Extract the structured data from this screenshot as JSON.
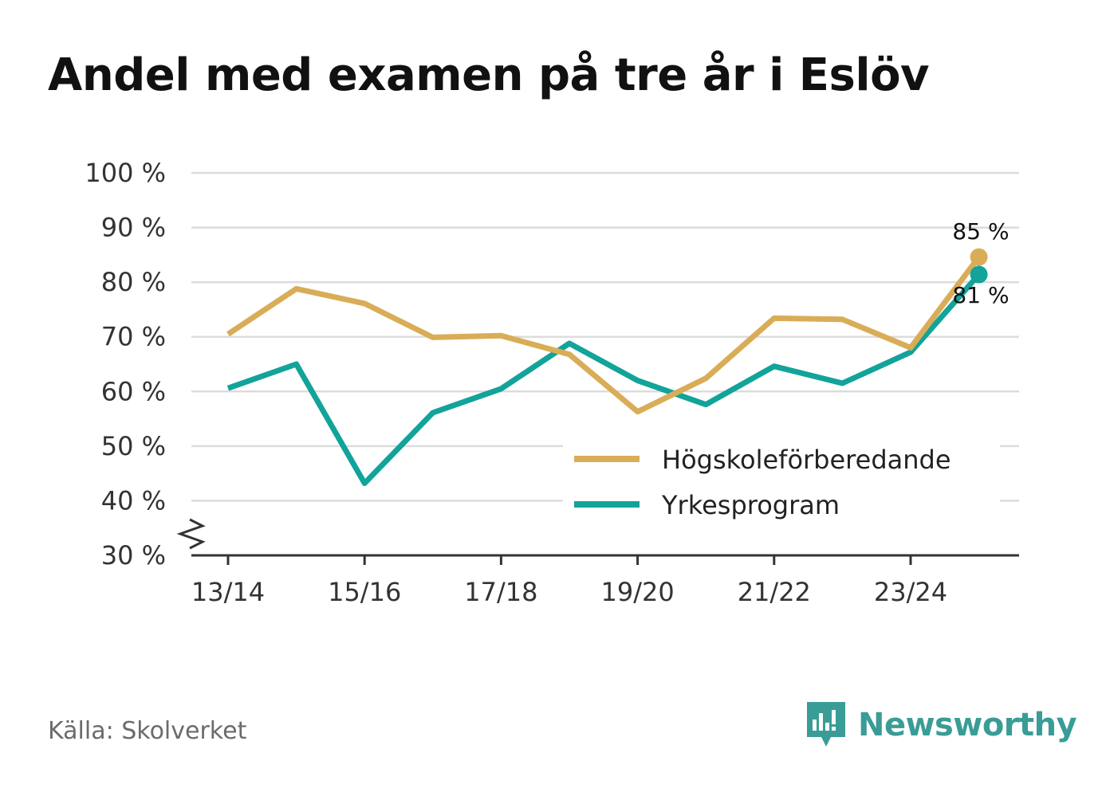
{
  "title": "Andel med examen på tre år i Eslöv",
  "source": "Källa: Skolverket",
  "brand": {
    "name": "Newsworthy",
    "color": "#3a9c96",
    "icon": "newsworthy-logo-icon"
  },
  "chart_data": {
    "type": "line",
    "title": "Andel med examen på tre år i Eslöv",
    "xlabel": "",
    "ylabel": "",
    "x": [
      "13/14",
      "14/15",
      "15/16",
      "16/17",
      "17/18",
      "18/19",
      "19/20",
      "20/21",
      "21/22",
      "22/23",
      "23/24",
      "24/25"
    ],
    "x_tick_labels": [
      "13/14",
      "15/16",
      "17/18",
      "19/20",
      "21/22",
      "23/24"
    ],
    "ylim": [
      30,
      100
    ],
    "y_ticks": [
      30,
      40,
      50,
      60,
      70,
      80,
      90,
      100
    ],
    "y_tick_labels": [
      "30 %",
      "40 %",
      "50 %",
      "60 %",
      "70 %",
      "80 %",
      "90 %",
      "100 %"
    ],
    "axis_break": true,
    "grid": true,
    "legend_position": "bottom-right",
    "series": [
      {
        "name": "Högskoleförberedande",
        "color": "#d9ad57",
        "values": [
          70.5,
          78.8,
          76.1,
          69.9,
          70.2,
          66.8,
          56.3,
          62.4,
          73.4,
          73.2,
          68.0,
          84.6
        ],
        "end_label": "85 %"
      },
      {
        "name": "Yrkesprogram",
        "color": "#12a39a",
        "values": [
          60.6,
          65.0,
          43.2,
          56.1,
          60.5,
          68.8,
          62.0,
          57.6,
          64.6,
          61.5,
          67.2,
          81.4
        ],
        "end_label": "81 %"
      }
    ]
  }
}
